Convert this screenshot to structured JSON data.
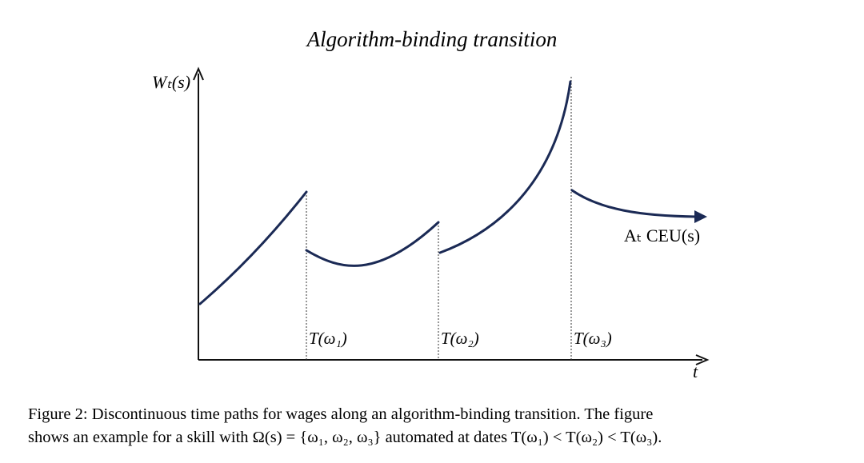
{
  "title": "Algorithm-binding transition",
  "y_axis_label": "Wₜ(s)",
  "x_axis_label": "t",
  "markers": [
    "T(ω₁)",
    "T(ω₂)",
    "T(ω₃)"
  ],
  "curve_label": "Aₜ CEU(s)",
  "caption": [
    "Figure 2: Discontinuous time paths for wages along an algorithm-binding transition. The figure",
    "shows an example for a skill with Ω(s) = {ω₁, ω₂, ω₃} automated at dates T(ω₁) < T(ω₂) < T(ω₃)."
  ]
}
